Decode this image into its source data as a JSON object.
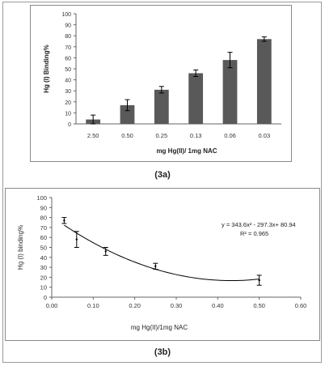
{
  "captions": {
    "a": "(3a)",
    "b": "(3b)"
  },
  "chart_data": [
    {
      "type": "bar",
      "categories": [
        "2.50",
        "0.50",
        "0.25",
        "0.13",
        "0.06",
        "0.03"
      ],
      "values": [
        4,
        17,
        31,
        46,
        58,
        77
      ],
      "errors": [
        4,
        5,
        3,
        3,
        7,
        2
      ],
      "ylim": [
        0,
        100
      ],
      "yticks": [
        0,
        10,
        20,
        30,
        40,
        50,
        60,
        70,
        80,
        90,
        100
      ],
      "xlabel": "mg Hg(II)/ 1mg NAC",
      "ylabel": "Hg (I) Binding%",
      "bar_color": "#595959",
      "grid": false
    },
    {
      "type": "scatter",
      "x": [
        0.03,
        0.06,
        0.13,
        0.25,
        0.5
      ],
      "y": [
        77,
        58,
        46,
        31,
        17
      ],
      "errors": [
        3,
        8,
        4,
        3,
        5
      ],
      "trendline": {
        "a": 343.6,
        "b": -297.3,
        "c": 80.94
      },
      "equation": "y = 343.6x² - 297.3x+ 80.94",
      "r2_label": "R² = 0.965",
      "xlim": [
        0,
        0.6
      ],
      "ylim": [
        0,
        100
      ],
      "xticks": [
        "0.00",
        "0.10",
        "0.20",
        "0.30",
        "0.40",
        "0.50",
        "0.60"
      ],
      "yticks": [
        0,
        10,
        20,
        30,
        40,
        50,
        60,
        70,
        80,
        90,
        100
      ],
      "xlabel": "mg Hg(II)/1mg NAC",
      "ylabel": "Hg (I) binding%",
      "grid": false
    }
  ]
}
